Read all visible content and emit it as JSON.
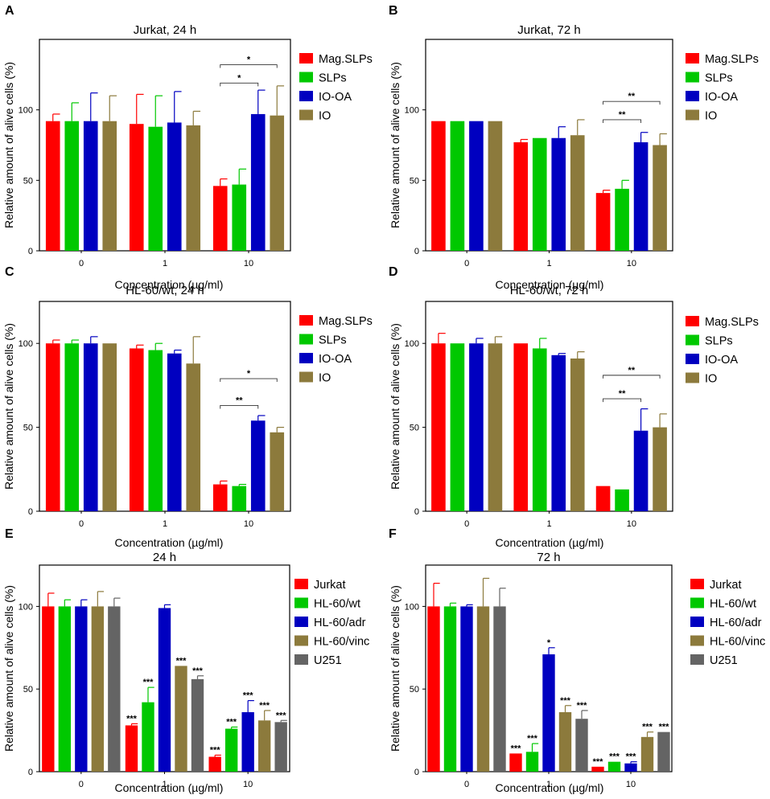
{
  "figure": {
    "ylabel": "Relative amount of alive cells (%)",
    "xlabel": "Concentration (µg/ml)"
  },
  "colors": {
    "Mag.SLPs": "#ff0000",
    "SLPs": "#00c800",
    "IO-OA": "#0000c0",
    "IO": "#8c7a3c",
    "Jurkat": "#ff0000",
    "HL-60/wt": "#00c800",
    "HL-60/adr": "#0000c0",
    "HL-60/vinc": "#8c7a3c",
    "U251": "#646464"
  },
  "chart_data": [
    {
      "panel": "A",
      "type": "bar",
      "title": "Jurkat, 24 h",
      "xlabel": "Concentration (µg/ml)",
      "ylabel": "Relative amount of alive cells (%)",
      "ylim": [
        0,
        150
      ],
      "yticks": [
        0,
        50,
        100
      ],
      "categories": [
        "0",
        "1",
        "10"
      ],
      "series": [
        {
          "name": "Mag.SLPs",
          "values": [
            92,
            90,
            46
          ],
          "errors": [
            5,
            21,
            5
          ]
        },
        {
          "name": "SLPs",
          "values": [
            92,
            88,
            47
          ],
          "errors": [
            13,
            22,
            11
          ]
        },
        {
          "name": "IO-OA",
          "values": [
            92,
            91,
            97
          ],
          "errors": [
            20,
            22,
            17
          ]
        },
        {
          "name": "IO",
          "values": [
            92,
            89,
            96
          ],
          "errors": [
            18,
            10,
            21
          ]
        }
      ],
      "annotations": [
        {
          "label": "*",
          "cat": 2,
          "from": 0,
          "to": 3,
          "level": 132
        },
        {
          "label": "*",
          "cat": 2,
          "from": 0,
          "to": 2,
          "level": 119
        }
      ]
    },
    {
      "panel": "B",
      "type": "bar",
      "title": "Jurkat, 72 h",
      "xlabel": "Concentration (µg/ml)",
      "ylabel": "Relative amount of alive cells (%)",
      "ylim": [
        0,
        150
      ],
      "yticks": [
        0,
        50,
        100
      ],
      "categories": [
        "0",
        "1",
        "10"
      ],
      "series": [
        {
          "name": "Mag.SLPs",
          "values": [
            92,
            77,
            41
          ],
          "errors": [
            0,
            2,
            2
          ]
        },
        {
          "name": "SLPs",
          "values": [
            92,
            80,
            44
          ],
          "errors": [
            0,
            0,
            6
          ]
        },
        {
          "name": "IO-OA",
          "values": [
            92,
            80,
            77
          ],
          "errors": [
            0,
            8,
            7
          ]
        },
        {
          "name": "IO",
          "values": [
            92,
            82,
            75
          ],
          "errors": [
            0,
            11,
            8
          ]
        }
      ],
      "annotations": [
        {
          "label": "**",
          "cat": 2,
          "from": 0,
          "to": 3,
          "level": 106
        },
        {
          "label": "**",
          "cat": 2,
          "from": 0,
          "to": 2,
          "level": 93
        }
      ]
    },
    {
      "panel": "C",
      "type": "bar",
      "title": "HL-60/wt, 24 h",
      "xlabel": "Concentration (µg/ml)",
      "ylabel": "Relative amount of alive cells (%)",
      "ylim": [
        0,
        125
      ],
      "yticks": [
        0,
        50,
        100
      ],
      "categories": [
        "0",
        "1",
        "10"
      ],
      "series": [
        {
          "name": "Mag.SLPs",
          "values": [
            100,
            97,
            16
          ],
          "errors": [
            2,
            2,
            2
          ]
        },
        {
          "name": "SLPs",
          "values": [
            100,
            96,
            15
          ],
          "errors": [
            2,
            4,
            1
          ]
        },
        {
          "name": "IO-OA",
          "values": [
            100,
            94,
            54
          ],
          "errors": [
            4,
            2,
            3
          ]
        },
        {
          "name": "IO",
          "values": [
            100,
            88,
            47
          ],
          "errors": [
            0,
            16,
            3
          ]
        }
      ],
      "annotations": [
        {
          "label": "*",
          "cat": 2,
          "from": 0,
          "to": 3,
          "level": 79
        },
        {
          "label": "**",
          "cat": 2,
          "from": 0,
          "to": 2,
          "level": 63
        }
      ]
    },
    {
      "panel": "D",
      "type": "bar",
      "title": "HL-60/wt, 72 h",
      "xlabel": "Concentration (µg/ml)",
      "ylabel": "Relative amount of alive cells (%)",
      "ylim": [
        0,
        125
      ],
      "yticks": [
        0,
        50,
        100
      ],
      "categories": [
        "0",
        "1",
        "10"
      ],
      "series": [
        {
          "name": "Mag.SLPs",
          "values": [
            100,
            100,
            15
          ],
          "errors": [
            6,
            0,
            0
          ]
        },
        {
          "name": "SLPs",
          "values": [
            100,
            97,
            13
          ],
          "errors": [
            0,
            6,
            0
          ]
        },
        {
          "name": "IO-OA",
          "values": [
            100,
            93,
            48
          ],
          "errors": [
            3,
            1,
            13
          ]
        },
        {
          "name": "IO",
          "values": [
            100,
            91,
            50
          ],
          "errors": [
            4,
            4,
            8
          ]
        }
      ],
      "annotations": [
        {
          "label": "**",
          "cat": 2,
          "from": 0,
          "to": 3,
          "level": 81
        },
        {
          "label": "**",
          "cat": 2,
          "from": 0,
          "to": 2,
          "level": 67
        }
      ]
    },
    {
      "panel": "E",
      "type": "bar",
      "title": "24 h",
      "xlabel": "Concentration (µg/ml)",
      "ylabel": "Relative amount of alive cells (%)",
      "ylim": [
        0,
        125
      ],
      "yticks": [
        0,
        50,
        100
      ],
      "categories": [
        "0",
        "1",
        "10"
      ],
      "series": [
        {
          "name": "Jurkat",
          "values": [
            100,
            28,
            9
          ],
          "errors": [
            8,
            1,
            1
          ],
          "sig": [
            "",
            "***",
            "***"
          ]
        },
        {
          "name": "HL-60/wt",
          "values": [
            100,
            42,
            26
          ],
          "errors": [
            4,
            9,
            1
          ],
          "sig": [
            "",
            "***",
            "***"
          ]
        },
        {
          "name": "HL-60/adr",
          "values": [
            100,
            99,
            36
          ],
          "errors": [
            4,
            2,
            7
          ],
          "sig": [
            "",
            "",
            "***"
          ]
        },
        {
          "name": "HL-60/vinc",
          "values": [
            100,
            64,
            31
          ],
          "errors": [
            9,
            0,
            6
          ],
          "sig": [
            "",
            "***",
            "***"
          ]
        },
        {
          "name": "U251",
          "values": [
            100,
            56,
            30
          ],
          "errors": [
            5,
            2,
            1
          ],
          "sig": [
            "",
            "***",
            "***"
          ]
        }
      ]
    },
    {
      "panel": "F",
      "type": "bar",
      "title": "72 h",
      "xlabel": "Concentration (µg/ml)",
      "ylabel": "Relative amount of alive cells (%)",
      "ylim": [
        0,
        125
      ],
      "yticks": [
        0,
        50,
        100
      ],
      "categories": [
        "0",
        "1",
        "10"
      ],
      "series": [
        {
          "name": "Jurkat",
          "values": [
            100,
            11,
            3
          ],
          "errors": [
            14,
            0,
            0
          ],
          "sig": [
            "",
            "***",
            "***"
          ]
        },
        {
          "name": "HL-60/wt",
          "values": [
            100,
            12,
            6
          ],
          "errors": [
            2,
            5,
            0
          ],
          "sig": [
            "",
            "***",
            "***"
          ]
        },
        {
          "name": "HL-60/adr",
          "values": [
            100,
            71,
            5
          ],
          "errors": [
            1,
            4,
            1
          ],
          "sig": [
            "",
            "*",
            "***"
          ]
        },
        {
          "name": "HL-60/vinc",
          "values": [
            100,
            36,
            21
          ],
          "errors": [
            17,
            4,
            3
          ],
          "sig": [
            "",
            "***",
            "***"
          ]
        },
        {
          "name": "U251",
          "values": [
            100,
            32,
            24
          ],
          "errors": [
            11,
            5,
            0
          ],
          "sig": [
            "",
            "***",
            "***"
          ]
        }
      ]
    }
  ]
}
